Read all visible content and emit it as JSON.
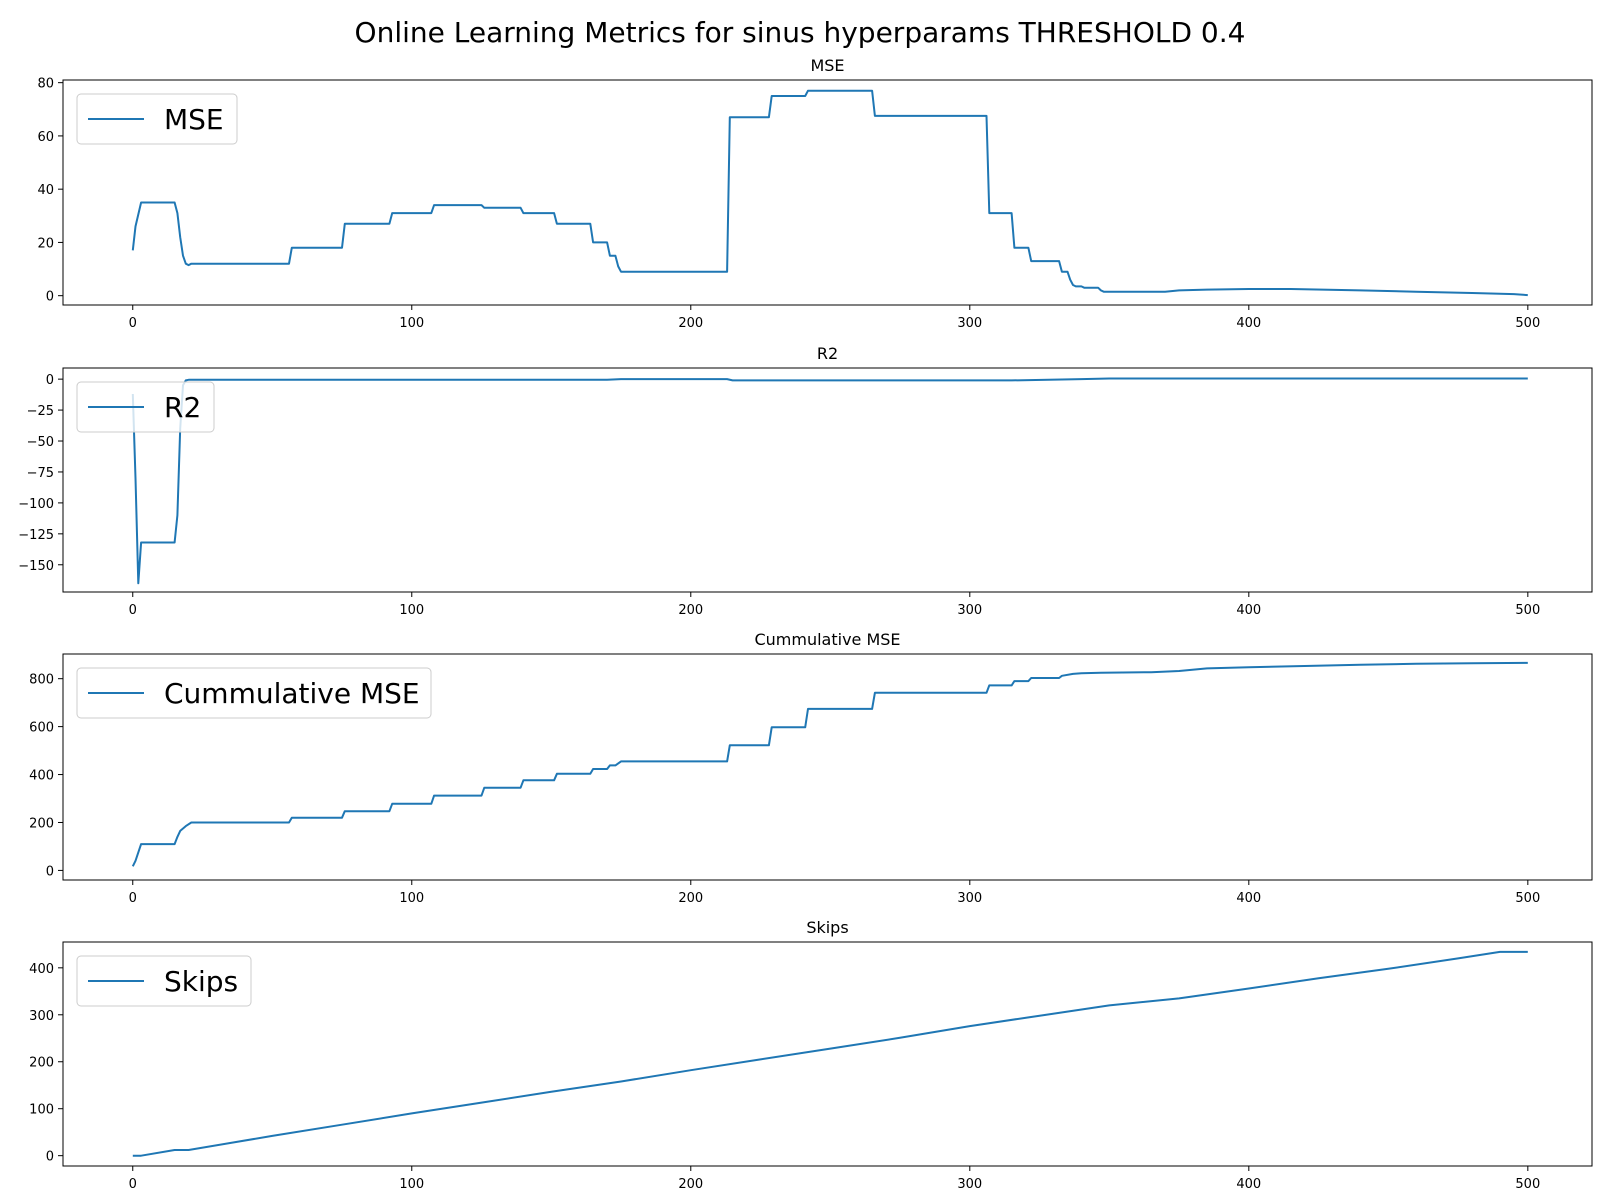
{
  "figure": {
    "title": "Online Learning Metrics for sinus hyperparams THRESHOLD 0.4"
  },
  "colors": {
    "series": "#1f77b4",
    "axis": "#000000",
    "legend_border": "#cccccc"
  },
  "chart_data": [
    {
      "type": "line",
      "title": "MSE",
      "xlabel": "",
      "ylabel": "",
      "xlim": [
        -25,
        523
      ],
      "ylim": [
        -3.5,
        81
      ],
      "xticks": [
        0,
        100,
        200,
        300,
        400,
        500
      ],
      "yticks": [
        0,
        20,
        40,
        60,
        80
      ],
      "grid": false,
      "legend": "upper-left",
      "series": [
        {
          "name": "MSE",
          "points": [
            [
              0,
              17
            ],
            [
              1,
              26
            ],
            [
              3,
              35
            ],
            [
              15,
              35
            ],
            [
              16,
              31
            ],
            [
              17,
              22
            ],
            [
              18,
              15
            ],
            [
              19,
              12
            ],
            [
              20,
              11.5
            ],
            [
              21,
              12
            ],
            [
              56,
              12
            ],
            [
              57,
              18
            ],
            [
              75,
              18
            ],
            [
              76,
              27
            ],
            [
              92,
              27
            ],
            [
              93,
              31
            ],
            [
              107,
              31
            ],
            [
              108,
              34
            ],
            [
              125,
              34
            ],
            [
              126,
              33
            ],
            [
              139,
              33
            ],
            [
              140,
              31
            ],
            [
              151,
              31
            ],
            [
              152,
              27
            ],
            [
              164,
              27
            ],
            [
              165,
              20
            ],
            [
              170,
              20
            ],
            [
              171,
              15
            ],
            [
              173,
              15
            ],
            [
              174,
              11
            ],
            [
              175,
              9
            ],
            [
              213,
              9
            ],
            [
              214,
              67
            ],
            [
              228,
              67
            ],
            [
              229,
              75
            ],
            [
              241,
              75
            ],
            [
              242,
              77
            ],
            [
              265,
              77
            ],
            [
              266,
              67.5
            ],
            [
              306,
              67.5
            ],
            [
              307,
              31
            ],
            [
              315,
              31
            ],
            [
              316,
              18
            ],
            [
              321,
              18
            ],
            [
              322,
              13
            ],
            [
              332,
              13
            ],
            [
              333,
              9
            ],
            [
              335,
              9
            ],
            [
              336,
              6
            ],
            [
              337,
              4
            ],
            [
              338,
              3.5
            ],
            [
              340,
              3.5
            ],
            [
              341,
              3
            ],
            [
              346,
              3
            ],
            [
              347,
              2
            ],
            [
              348,
              1.5
            ],
            [
              365,
              1.5
            ],
            [
              370,
              1.5
            ],
            [
              375,
              2
            ],
            [
              385,
              2.3
            ],
            [
              400,
              2.5
            ],
            [
              415,
              2.5
            ],
            [
              440,
              2
            ],
            [
              460,
              1.5
            ],
            [
              480,
              1
            ],
            [
              495,
              0.6
            ],
            [
              500,
              0.2
            ]
          ]
        }
      ]
    },
    {
      "type": "line",
      "title": "R2",
      "xlabel": "",
      "ylabel": "",
      "xlim": [
        -25,
        523
      ],
      "ylim": [
        -172,
        9
      ],
      "xticks": [
        0,
        100,
        200,
        300,
        400,
        500
      ],
      "yticks": [
        0,
        -25,
        -50,
        -75,
        -100,
        -125,
        -150
      ],
      "grid": false,
      "legend": "upper-left",
      "series": [
        {
          "name": "R2",
          "points": [
            [
              0,
              -12
            ],
            [
              1,
              -80
            ],
            [
              2,
              -165
            ],
            [
              3,
              -132
            ],
            [
              15,
              -132
            ],
            [
              16,
              -110
            ],
            [
              17,
              -40
            ],
            [
              18,
              -5
            ],
            [
              19,
              -1
            ],
            [
              20,
              -0.5
            ],
            [
              170,
              -0.5
            ],
            [
              175,
              0
            ],
            [
              213,
              0
            ],
            [
              215,
              -1
            ],
            [
              315,
              -1
            ],
            [
              340,
              0
            ],
            [
              350,
              0.5
            ],
            [
              500,
              0.5
            ]
          ]
        }
      ]
    },
    {
      "type": "line",
      "title": "Cummulative MSE",
      "xlabel": "",
      "ylabel": "",
      "xlim": [
        -25,
        523
      ],
      "ylim": [
        -40,
        903
      ],
      "xticks": [
        0,
        100,
        200,
        300,
        400,
        500
      ],
      "yticks": [
        0,
        200,
        400,
        600,
        800
      ],
      "grid": false,
      "legend": "upper-left",
      "series": [
        {
          "name": "Cummulative MSE",
          "points": [
            [
              0,
              17
            ],
            [
              1,
              40
            ],
            [
              3,
              110
            ],
            [
              15,
              110
            ],
            [
              16,
              140
            ],
            [
              17,
              165
            ],
            [
              19,
              185
            ],
            [
              21,
              200
            ],
            [
              56,
              200
            ],
            [
              57,
              220
            ],
            [
              75,
              220
            ],
            [
              76,
              247
            ],
            [
              92,
              247
            ],
            [
              93,
              278
            ],
            [
              107,
              278
            ],
            [
              108,
              312
            ],
            [
              125,
              312
            ],
            [
              126,
              345
            ],
            [
              139,
              345
            ],
            [
              140,
              376
            ],
            [
              151,
              376
            ],
            [
              152,
              403
            ],
            [
              164,
              403
            ],
            [
              165,
              423
            ],
            [
              170,
              423
            ],
            [
              171,
              438
            ],
            [
              173,
              438
            ],
            [
              175,
              455
            ],
            [
              213,
              455
            ],
            [
              214,
              522
            ],
            [
              228,
              522
            ],
            [
              229,
              597
            ],
            [
              241,
              597
            ],
            [
              242,
              674
            ],
            [
              265,
              674
            ],
            [
              266,
              741
            ],
            [
              306,
              741
            ],
            [
              307,
              772
            ],
            [
              315,
              772
            ],
            [
              316,
              790
            ],
            [
              321,
              790
            ],
            [
              322,
              803
            ],
            [
              332,
              803
            ],
            [
              333,
              812
            ],
            [
              337,
              820
            ],
            [
              340,
              823
            ],
            [
              347,
              825
            ],
            [
              365,
              827
            ],
            [
              375,
              832
            ],
            [
              385,
              843
            ],
            [
              400,
              848
            ],
            [
              420,
              853
            ],
            [
              440,
              858
            ],
            [
              460,
              862
            ],
            [
              480,
              864
            ],
            [
              500,
              866
            ]
          ]
        }
      ]
    },
    {
      "type": "line",
      "title": "Skips",
      "xlabel": "",
      "ylabel": "",
      "xlim": [
        -25,
        523
      ],
      "ylim": [
        -22,
        455
      ],
      "xticks": [
        0,
        100,
        200,
        300,
        400,
        500
      ],
      "yticks": [
        0,
        100,
        200,
        300,
        400
      ],
      "grid": false,
      "legend": "upper-left",
      "series": [
        {
          "name": "Skips",
          "points": [
            [
              0,
              0
            ],
            [
              3,
              0
            ],
            [
              15,
              12
            ],
            [
              20,
              12
            ],
            [
              50,
              42
            ],
            [
              75,
              66
            ],
            [
              100,
              90
            ],
            [
              125,
              113
            ],
            [
              150,
              136
            ],
            [
              175,
              158
            ],
            [
              200,
              182
            ],
            [
              225,
              205
            ],
            [
              250,
              228
            ],
            [
              275,
              251
            ],
            [
              300,
              276
            ],
            [
              325,
              298
            ],
            [
              350,
              320
            ],
            [
              375,
              335
            ],
            [
              400,
              356
            ],
            [
              425,
              378
            ],
            [
              450,
              398
            ],
            [
              475,
              420
            ],
            [
              490,
              434
            ],
            [
              500,
              434
            ]
          ]
        }
      ]
    }
  ]
}
